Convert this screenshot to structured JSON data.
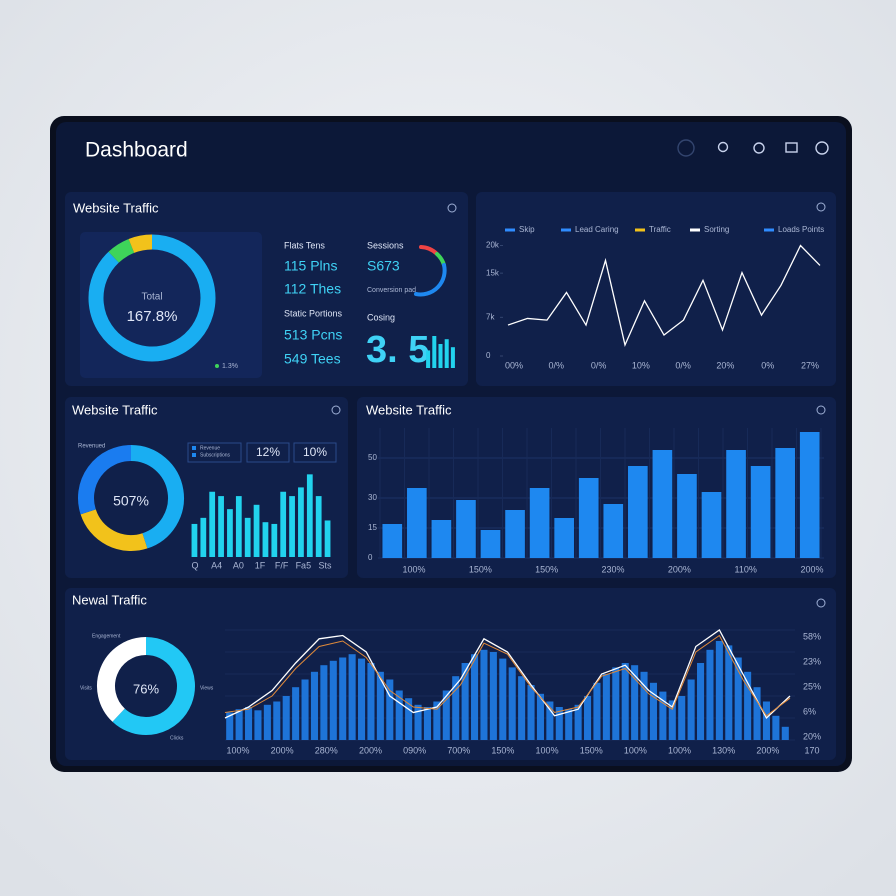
{
  "header": {
    "title": "Dashboard"
  },
  "traffic_panel": {
    "title": "Website Traffic",
    "donut": {
      "type": "pie",
      "center_label": "Total",
      "center_value": "167.8%",
      "values": [
        88,
        6,
        6
      ],
      "colors": [
        "#19aef2",
        "#3ed45a",
        "#f2c21b"
      ]
    },
    "legend_note": "1.3%",
    "stats": [
      "Flats Tens",
      "115 Plns",
      "112 Thes",
      "Static Portions",
      "513 Pcns",
      "549 Tees"
    ],
    "sessions": {
      "label": "Sessions",
      "value": "S673",
      "note": "Conversion pad"
    },
    "conversion": {
      "label": "Cosing",
      "value": "3. 5",
      "bars": [
        55,
        100,
        75,
        90,
        65
      ],
      "color": "#22d3ee"
    }
  },
  "line_panel": {
    "type": "line",
    "legend": [
      {
        "name": "Skip",
        "color": "#2f8cff"
      },
      {
        "name": "Lead Caring",
        "color": "#2f8cff"
      },
      {
        "name": "Traffic",
        "color": "#f2c21b"
      },
      {
        "name": "Sorting",
        "color": "#ffffff"
      },
      {
        "name": "Loads Points",
        "color": "#2f8cff"
      }
    ],
    "ylim": [
      0,
      21
    ],
    "yticks": [
      {
        "value": 20,
        "label": "20k"
      },
      {
        "value": 15,
        "label": "15k"
      },
      {
        "value": 7,
        "label": "7k"
      },
      0
    ],
    "values": [
      5.6,
      6.8,
      6.5,
      11.5,
      5.6,
      17.3,
      2,
      10,
      3.8,
      6.5,
      13.7,
      4.7,
      15.1,
      7.4,
      12.8,
      20,
      16.4
    ],
    "color": "#ffffff",
    "x_labels": [
      "00%",
      "0/%",
      "0/%",
      "10%",
      "0/%",
      "20%",
      "0%",
      "27%"
    ]
  },
  "mini_panel": {
    "title": "Website Traffic",
    "donut": {
      "type": "pie",
      "center_value": "507%",
      "values": [
        45,
        25,
        30
      ],
      "colors": [
        "#19aef2",
        "#f2c21b",
        "#1a7cf0"
      ]
    },
    "donut_label": "Revenued",
    "legend": [
      "Revenue",
      "Subscriptions"
    ],
    "badges": [
      "12%",
      "10%"
    ],
    "bars": {
      "type": "bar",
      "ylim": [
        0,
        100
      ],
      "values": [
        38,
        45,
        75,
        70,
        55,
        70,
        45,
        60,
        40,
        38,
        75,
        70,
        80,
        95,
        70,
        42
      ],
      "color": "#22d3ee"
    },
    "x_labels": [
      "Q",
      "A4",
      "A0",
      "1F",
      "F/F",
      "Fa5",
      "Sts"
    ]
  },
  "bar_panel": {
    "title": "Website Traffic",
    "type": "bar",
    "ylim": [
      0,
      65
    ],
    "yticks": [
      0,
      15,
      30,
      50
    ],
    "values": [
      17,
      35,
      19,
      29,
      14,
      24,
      35,
      20,
      40,
      27,
      46,
      54,
      42,
      33,
      54,
      46,
      55,
      63
    ],
    "color": "#1e88f0",
    "grid": true,
    "x_labels": [
      "100%",
      "150%",
      "150%",
      "230%",
      "200%",
      "110%",
      "200%"
    ]
  },
  "bottom_panel": {
    "title": "Newal Traffic",
    "donut": {
      "type": "pie",
      "center_value": "76%",
      "values": [
        62,
        38
      ],
      "colors": [
        "#22c8f5",
        "#ffffff"
      ]
    },
    "donut_labels": [
      "Engagement",
      "Visits",
      "Views",
      "Clicks"
    ],
    "type": "combo",
    "ylim": [
      0,
      100
    ],
    "bars": [
      25,
      28,
      30,
      27,
      32,
      35,
      40,
      48,
      55,
      62,
      68,
      72,
      75,
      78,
      74,
      70,
      62,
      55,
      45,
      38,
      32,
      30,
      35,
      45,
      58,
      70,
      78,
      82,
      80,
      74,
      66,
      58,
      50,
      42,
      35,
      30,
      28,
      32,
      40,
      52,
      60,
      66,
      70,
      68,
      62,
      52,
      44,
      36,
      40,
      55,
      70,
      82,
      90,
      86,
      75,
      62,
      48,
      35,
      22,
      12
    ],
    "bar_color": "#1e74d8",
    "lines": [
      {
        "color": "#ffffff",
        "values": [
          20,
          30,
          45,
          70,
          92,
          95,
          80,
          40,
          25,
          30,
          55,
          92,
          80,
          50,
          22,
          28,
          60,
          68,
          45,
          30,
          85,
          100,
          60,
          20,
          40
        ]
      },
      {
        "color": "#e08a3a",
        "values": [
          25,
          28,
          40,
          65,
          85,
          90,
          75,
          45,
          30,
          28,
          50,
          88,
          78,
          48,
          25,
          30,
          58,
          65,
          42,
          28,
          80,
          95,
          55,
          22,
          38
        ]
      }
    ],
    "right_labels": [
      "58%",
      "23%",
      "25%",
      "6%",
      "20%"
    ],
    "x_labels": [
      "100%",
      "200%",
      "280%",
      "200%",
      "090%",
      "700%",
      "150%",
      "100%",
      "150%",
      "100%",
      "100%",
      "130%",
      "200%",
      "170"
    ]
  }
}
